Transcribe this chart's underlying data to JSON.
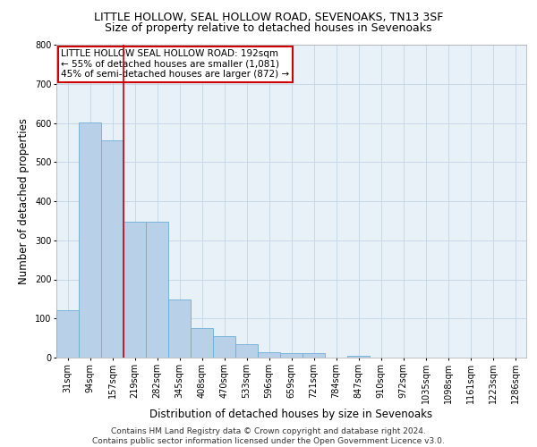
{
  "title": "LITTLE HOLLOW, SEAL HOLLOW ROAD, SEVENOAKS, TN13 3SF",
  "subtitle": "Size of property relative to detached houses in Sevenoaks",
  "xlabel": "Distribution of detached houses by size in Sevenoaks",
  "ylabel": "Number of detached properties",
  "categories": [
    "31sqm",
    "94sqm",
    "157sqm",
    "219sqm",
    "282sqm",
    "345sqm",
    "408sqm",
    "470sqm",
    "533sqm",
    "596sqm",
    "659sqm",
    "721sqm",
    "784sqm",
    "847sqm",
    "910sqm",
    "972sqm",
    "1035sqm",
    "1098sqm",
    "1161sqm",
    "1223sqm",
    "1286sqm"
  ],
  "values": [
    122,
    601,
    556,
    348,
    348,
    148,
    75,
    56,
    35,
    14,
    12,
    12,
    0,
    5,
    0,
    0,
    0,
    0,
    0,
    0,
    0
  ],
  "bar_color": "#b8d0e8",
  "bar_edge_color": "#6baed6",
  "grid_color": "#c8d8e8",
  "background_color": "#e8f0f8",
  "annotation_text": "LITTLE HOLLOW SEAL HOLLOW ROAD: 192sqm\n← 55% of detached houses are smaller (1,081)\n45% of semi-detached houses are larger (872) →",
  "annotation_box_color": "#ffffff",
  "annotation_box_edge": "#cc0000",
  "vline_color": "#cc0000",
  "ylim": [
    0,
    800
  ],
  "yticks": [
    0,
    100,
    200,
    300,
    400,
    500,
    600,
    700,
    800
  ],
  "footer": "Contains HM Land Registry data © Crown copyright and database right 2024.\nContains public sector information licensed under the Open Government Licence v3.0.",
  "title_fontsize": 9,
  "subtitle_fontsize": 9,
  "axis_label_fontsize": 8.5,
  "tick_fontsize": 7,
  "footer_fontsize": 6.5
}
